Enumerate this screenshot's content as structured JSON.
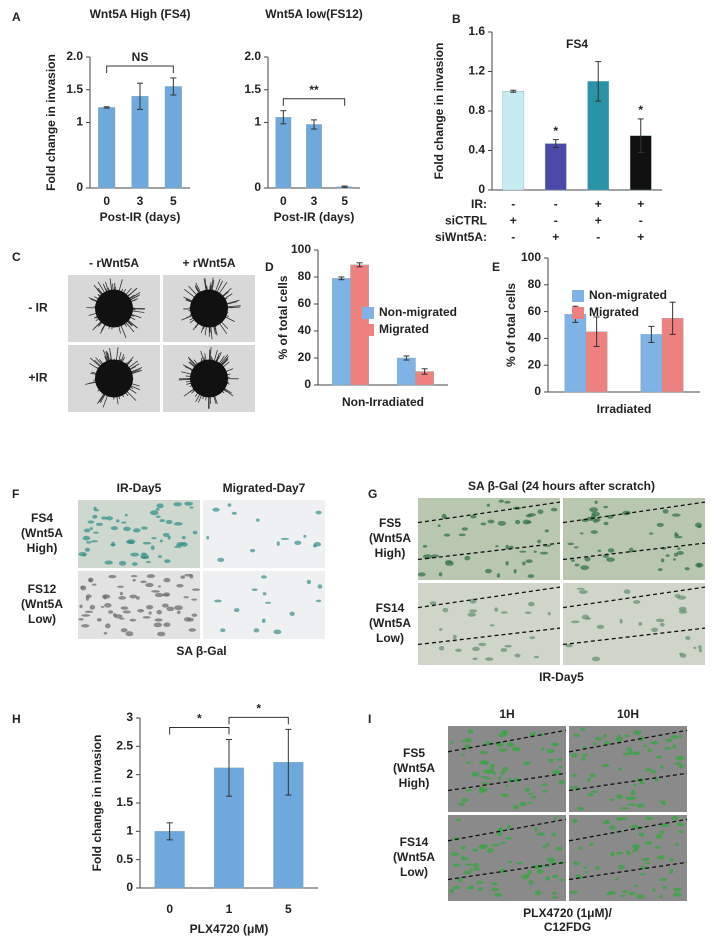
{
  "panel_letters": [
    "A",
    "B",
    "C",
    "D",
    "E",
    "F",
    "G",
    "H",
    "I"
  ],
  "chart_data": [
    {
      "type": "bar",
      "title": "Wnt5A High (FS4)",
      "y_label": "Fold change in invasion",
      "x_label": "Post-IR (days)",
      "categories": [
        "0",
        "3",
        "5"
      ],
      "series": [
        {
          "color": "#6fa8dc",
          "values": [
            1.23,
            1.4,
            1.55
          ],
          "errors": [
            0.01,
            0.2,
            0.13
          ]
        }
      ],
      "ylim": [
        0,
        2
      ],
      "yticks": [
        0,
        1,
        1.5,
        {
          "value": 2,
          "label": "2.0"
        }
      ],
      "annotations": [
        {
          "text": "NS",
          "from": 0,
          "to": 2
        }
      ]
    },
    {
      "type": "bar",
      "title": "Wnt5A low(FS12)",
      "x_label": "Post-IR (days)",
      "categories": [
        "0",
        "3",
        "5"
      ],
      "series": [
        {
          "color": "#6fa8dc",
          "values": [
            1.08,
            0.97,
            0.02
          ],
          "errors": [
            0.1,
            0.07,
            0.01
          ]
        }
      ],
      "ylim": [
        0,
        2
      ],
      "yticks": [
        0,
        1,
        1.5,
        {
          "value": 2,
          "label": "2.0"
        }
      ],
      "annotations": [
        {
          "text": "**",
          "from": 0,
          "to": 2
        }
      ]
    },
    {
      "type": "bar",
      "title": "FS4",
      "y_label": "Fold change in invasion",
      "categories": [
        null,
        null,
        null,
        null
      ],
      "series": [
        {
          "colors": [
            "#c6ecf2",
            "#4b4aa8",
            "#2a93a5",
            "#111111"
          ],
          "values": [
            1.0,
            0.47,
            1.1,
            0.55
          ],
          "errors": [
            0.01,
            0.04,
            0.2,
            0.17
          ]
        }
      ],
      "ylim": [
        0,
        1.6
      ],
      "yticks": [
        0,
        0.4,
        0.8,
        1.2,
        1.6
      ],
      "bar_annotations": [
        {
          "text": "*",
          "bar": 1
        },
        {
          "text": "*",
          "bar": 3
        }
      ],
      "conditions": [
        {
          "label": "IR:",
          "signs": [
            "-",
            "-",
            "+",
            "+"
          ]
        },
        {
          "label": "siCTRL",
          "signs": [
            "+",
            "-",
            "+",
            "-"
          ]
        },
        {
          "label": "siWnt5A:",
          "signs": [
            "-",
            "+",
            "-",
            "+"
          ]
        }
      ]
    },
    {
      "type": "bar",
      "y_label": "% of total cells",
      "x_label": "Non-Irradiated",
      "categories": [
        null,
        null
      ],
      "series": [
        {
          "name": "Non-migrated",
          "color": "#7fb2e5",
          "values": [
            79,
            20
          ],
          "errors": [
            1,
            1.5
          ]
        },
        {
          "name": "Migrated",
          "color": "#ef8080",
          "values": [
            89,
            10
          ],
          "errors": [
            1.5,
            2
          ]
        }
      ],
      "ylim": [
        0,
        100
      ],
      "yticks": [
        0,
        20,
        40,
        60,
        80,
        100
      ]
    },
    {
      "type": "bar",
      "y_label": "% of total cells",
      "x_label": "Irradiated",
      "categories": [
        null,
        null
      ],
      "series": [
        {
          "name": "Non-migrated",
          "color": "#7fb2e5",
          "values": [
            58,
            43
          ],
          "errors": [
            6,
            6
          ]
        },
        {
          "name": "Migrated",
          "color": "#ef8080",
          "values": [
            45,
            55
          ],
          "errors": [
            11,
            12
          ]
        }
      ],
      "ylim": [
        0,
        100
      ],
      "yticks": [
        0,
        20,
        40,
        60,
        80,
        100
      ]
    },
    {
      "type": "bar",
      "y_label": "Fold change in invasion",
      "x_label": "PLX4720 (μM)",
      "categories": [
        "0",
        "1",
        "5"
      ],
      "series": [
        {
          "color": "#6fa8dc",
          "values": [
            1.0,
            2.12,
            2.22
          ],
          "errors": [
            0.15,
            0.5,
            0.58
          ]
        }
      ],
      "ylim": [
        0,
        3
      ],
      "yticks": [
        0,
        0.5,
        1,
        1.5,
        2,
        2.5,
        3
      ],
      "annotations": [
        {
          "text": "*",
          "from": 0,
          "to": 1
        },
        {
          "text": "*",
          "from": 1,
          "to": 2
        }
      ]
    }
  ],
  "image_panels": {
    "C": {
      "columns": [
        "- rWnt5A",
        "+ rWnt5A"
      ],
      "rows": [
        [
          "- IR"
        ],
        [
          "+IR"
        ]
      ]
    },
    "F": {
      "columns": [
        "IR-Day5",
        "Migrated-Day7"
      ],
      "rows": [
        [
          "FS4",
          "(Wnt5A",
          "High)"
        ],
        [
          "FS12",
          "(Wnt5A",
          "Low)"
        ]
      ],
      "caption": [
        "SA β-Gal"
      ]
    },
    "G": {
      "title": "SA β-Gal (24 hours after scratch)",
      "rows": [
        [
          "FS5",
          "(Wnt5A",
          "High)"
        ],
        [
          "FS14",
          "(Wnt5A",
          "Low)"
        ]
      ],
      "caption": [
        "IR-Day5"
      ]
    },
    "I": {
      "columns": [
        "1H",
        "10H"
      ],
      "rows": [
        [
          "FS5",
          "(Wnt5A",
          "High)"
        ],
        [
          "FS14",
          "(Wnt5A",
          "Low)"
        ]
      ],
      "caption": [
        "PLX4720 (1μM)/",
        "C12FDG"
      ]
    }
  }
}
